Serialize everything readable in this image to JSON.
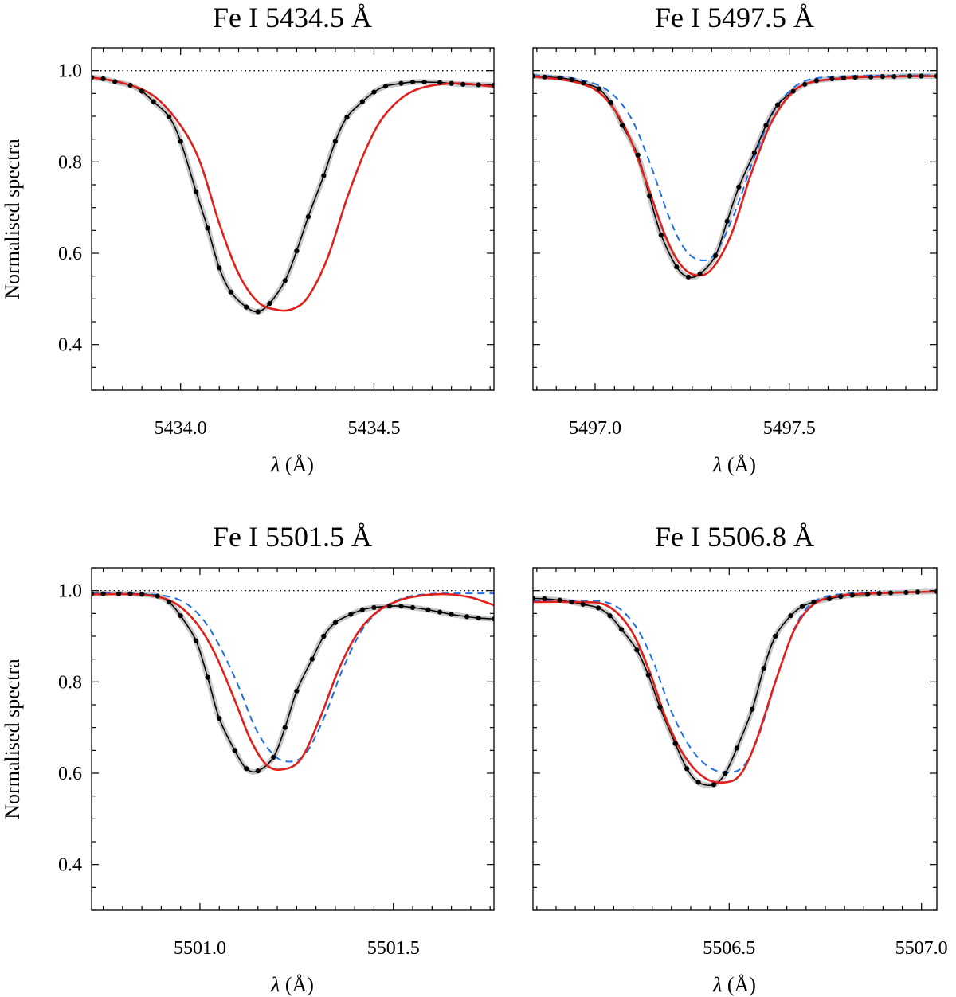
{
  "figure": {
    "ylabel": "Normalised spectra",
    "xlabel_symbol": "λ",
    "xlabel_unit": " (Å)"
  },
  "colors": {
    "observed": "#000000",
    "band": "#c8c8c8",
    "model_red": "#e0201b",
    "model_blue": "#1f6fe5"
  },
  "chart_data": [
    {
      "type": "line",
      "title": "Fe I  5434.5 Å",
      "xlabel": "λ (Å)",
      "ylabel": "Normalised spectra",
      "xlim": [
        5433.77,
        5434.81
      ],
      "ylim": [
        0.3,
        1.05
      ],
      "xticks": [
        5434.0,
        5434.5
      ],
      "xtick_labels": [
        "5434.0",
        "5434.5"
      ],
      "yticks": [
        0.4,
        0.6,
        0.8,
        1.0
      ],
      "ytick_labels": [
        "0.4",
        "0.6",
        "0.8",
        "1.0"
      ],
      "continuum": 1.0,
      "series": [
        {
          "name": "observed",
          "style": "black-dots",
          "x": [
            5433.77,
            5433.8,
            5433.83,
            5433.87,
            5433.9,
            5433.93,
            5433.97,
            5434.0,
            5434.04,
            5434.07,
            5434.1,
            5434.13,
            5434.17,
            5434.2,
            5434.23,
            5434.27,
            5434.3,
            5434.33,
            5434.37,
            5434.4,
            5434.43,
            5434.47,
            5434.5,
            5434.53,
            5434.57,
            5434.6,
            5434.63,
            5434.67,
            5434.7,
            5434.73,
            5434.77,
            5434.81
          ],
          "y": [
            0.985,
            0.982,
            0.976,
            0.968,
            0.955,
            0.932,
            0.899,
            0.845,
            0.735,
            0.655,
            0.568,
            0.515,
            0.482,
            0.472,
            0.49,
            0.54,
            0.605,
            0.68,
            0.77,
            0.845,
            0.898,
            0.932,
            0.953,
            0.966,
            0.972,
            0.975,
            0.975,
            0.974,
            0.972,
            0.97,
            0.969,
            0.968
          ]
        },
        {
          "name": "model (red)",
          "style": "red-solid",
          "x": [
            5433.77,
            5433.85,
            5433.93,
            5434.0,
            5434.05,
            5434.1,
            5434.15,
            5434.2,
            5434.25,
            5434.29,
            5434.33,
            5434.38,
            5434.43,
            5434.48,
            5434.53,
            5434.6,
            5434.7,
            5434.81
          ],
          "y": [
            0.985,
            0.973,
            0.945,
            0.88,
            0.8,
            0.665,
            0.555,
            0.493,
            0.476,
            0.478,
            0.505,
            0.59,
            0.72,
            0.83,
            0.905,
            0.955,
            0.972,
            0.965
          ]
        }
      ]
    },
    {
      "type": "line",
      "title": "Fe I  5497.5 Å",
      "xlabel": "λ (Å)",
      "ylabel": "Normalised spectra",
      "xlim": [
        5496.84,
        5497.88
      ],
      "ylim": [
        0.3,
        1.05
      ],
      "xticks": [
        5497.0,
        5497.5
      ],
      "xtick_labels": [
        "5497.0",
        "5497.5"
      ],
      "yticks": [
        0.4,
        0.6,
        0.8,
        1.0
      ],
      "ytick_labels": [
        "0.4",
        "0.6",
        "0.8",
        "1.0"
      ],
      "continuum": 1.0,
      "series": [
        {
          "name": "observed",
          "style": "black-dots",
          "x": [
            5496.84,
            5496.87,
            5496.91,
            5496.94,
            5496.97,
            5497.01,
            5497.04,
            5497.07,
            5497.11,
            5497.14,
            5497.17,
            5497.21,
            5497.24,
            5497.27,
            5497.31,
            5497.34,
            5497.37,
            5497.41,
            5497.44,
            5497.47,
            5497.51,
            5497.54,
            5497.57,
            5497.61,
            5497.64,
            5497.67,
            5497.71,
            5497.74,
            5497.77,
            5497.81,
            5497.84,
            5497.88
          ],
          "y": [
            0.988,
            0.986,
            0.984,
            0.98,
            0.973,
            0.96,
            0.93,
            0.88,
            0.815,
            0.725,
            0.64,
            0.57,
            0.548,
            0.555,
            0.595,
            0.67,
            0.745,
            0.82,
            0.88,
            0.925,
            0.955,
            0.97,
            0.978,
            0.982,
            0.984,
            0.985,
            0.986,
            0.987,
            0.987,
            0.988,
            0.988,
            0.988
          ]
        },
        {
          "name": "model (red)",
          "style": "red-solid",
          "x": [
            5496.84,
            5496.95,
            5497.02,
            5497.08,
            5497.13,
            5497.18,
            5497.22,
            5497.26,
            5497.3,
            5497.35,
            5497.4,
            5497.45,
            5497.5,
            5497.55,
            5497.65,
            5497.75,
            5497.88
          ],
          "y": [
            0.987,
            0.975,
            0.945,
            0.87,
            0.76,
            0.64,
            0.575,
            0.552,
            0.565,
            0.64,
            0.77,
            0.88,
            0.945,
            0.973,
            0.984,
            0.987,
            0.988
          ]
        },
        {
          "name": "model (blue dashed)",
          "style": "blue-dashed",
          "x": [
            5496.84,
            5496.95,
            5497.03,
            5497.09,
            5497.14,
            5497.19,
            5497.23,
            5497.27,
            5497.31,
            5497.36,
            5497.41,
            5497.46,
            5497.51,
            5497.56,
            5497.65,
            5497.75,
            5497.88
          ],
          "y": [
            0.99,
            0.982,
            0.958,
            0.9,
            0.8,
            0.68,
            0.61,
            0.585,
            0.6,
            0.69,
            0.81,
            0.91,
            0.962,
            0.982,
            0.988,
            0.989,
            0.99
          ]
        }
      ]
    },
    {
      "type": "line",
      "title": "Fe I  5501.5 Å",
      "xlabel": "λ (Å)",
      "ylabel": "Normalised spectra",
      "xlim": [
        5500.72,
        5501.76
      ],
      "ylim": [
        0.3,
        1.05
      ],
      "xticks": [
        5501.0,
        5501.5
      ],
      "xtick_labels": [
        "5501.0",
        "5501.5"
      ],
      "yticks": [
        0.4,
        0.6,
        0.8,
        1.0
      ],
      "ytick_labels": [
        "0.4",
        "0.6",
        "0.8",
        "1.0"
      ],
      "continuum": 1.0,
      "series": [
        {
          "name": "observed",
          "style": "black-dots",
          "x": [
            5500.72,
            5500.75,
            5500.79,
            5500.82,
            5500.85,
            5500.89,
            5500.92,
            5500.95,
            5500.99,
            5501.02,
            5501.05,
            5501.09,
            5501.12,
            5501.15,
            5501.19,
            5501.22,
            5501.25,
            5501.29,
            5501.32,
            5501.35,
            5501.39,
            5501.42,
            5501.45,
            5501.49,
            5501.52,
            5501.55,
            5501.59,
            5501.62,
            5501.65,
            5501.69,
            5501.72,
            5501.76
          ],
          "y": [
            0.993,
            0.993,
            0.993,
            0.993,
            0.992,
            0.988,
            0.975,
            0.945,
            0.89,
            0.81,
            0.72,
            0.65,
            0.61,
            0.605,
            0.635,
            0.7,
            0.78,
            0.85,
            0.9,
            0.93,
            0.948,
            0.958,
            0.963,
            0.966,
            0.966,
            0.963,
            0.958,
            0.953,
            0.948,
            0.943,
            0.94,
            0.938
          ]
        },
        {
          "name": "model (red)",
          "style": "red-solid",
          "x": [
            5500.72,
            5500.85,
            5500.93,
            5500.99,
            5501.04,
            5501.09,
            5501.13,
            5501.17,
            5501.21,
            5501.26,
            5501.31,
            5501.36,
            5501.41,
            5501.46,
            5501.52,
            5501.58,
            5501.64,
            5501.7,
            5501.76
          ],
          "y": [
            0.992,
            0.991,
            0.975,
            0.93,
            0.86,
            0.76,
            0.675,
            0.62,
            0.608,
            0.63,
            0.72,
            0.83,
            0.91,
            0.955,
            0.98,
            0.99,
            0.992,
            0.985,
            0.968
          ]
        },
        {
          "name": "model (blue dashed)",
          "style": "blue-dashed",
          "x": [
            5500.72,
            5500.85,
            5500.94,
            5501.0,
            5501.05,
            5501.1,
            5501.14,
            5501.18,
            5501.22,
            5501.27,
            5501.32,
            5501.37,
            5501.42,
            5501.47,
            5501.53,
            5501.6,
            5501.68,
            5501.76
          ],
          "y": [
            0.994,
            0.993,
            0.982,
            0.945,
            0.88,
            0.79,
            0.705,
            0.65,
            0.626,
            0.64,
            0.72,
            0.83,
            0.915,
            0.96,
            0.985,
            0.993,
            0.994,
            0.994
          ]
        }
      ]
    },
    {
      "type": "line",
      "title": "Fe I  5506.8 Å",
      "xlabel": "λ (Å)",
      "ylabel": "Normalised spectra",
      "xlim": [
        5505.99,
        5507.04
      ],
      "ylim": [
        0.3,
        1.05
      ],
      "xticks": [
        5506.5,
        5507.0
      ],
      "xtick_labels": [
        "5506.5",
        "5507.0"
      ],
      "yticks": [
        0.4,
        0.6,
        0.8,
        1.0
      ],
      "ytick_labels": [
        "0.4",
        "0.6",
        "0.8",
        "1.0"
      ],
      "continuum": 1.0,
      "series": [
        {
          "name": "observed",
          "style": "black-dots",
          "x": [
            5505.99,
            5506.02,
            5506.06,
            5506.09,
            5506.12,
            5506.16,
            5506.19,
            5506.22,
            5506.26,
            5506.29,
            5506.32,
            5506.36,
            5506.39,
            5506.42,
            5506.46,
            5506.49,
            5506.52,
            5506.56,
            5506.59,
            5506.62,
            5506.66,
            5506.69,
            5506.72,
            5506.76,
            5506.79,
            5506.82,
            5506.86,
            5506.89,
            5506.92,
            5506.96,
            5506.99,
            5507.04
          ],
          "y": [
            0.983,
            0.982,
            0.979,
            0.975,
            0.97,
            0.962,
            0.945,
            0.915,
            0.87,
            0.815,
            0.745,
            0.665,
            0.61,
            0.58,
            0.575,
            0.6,
            0.655,
            0.74,
            0.83,
            0.9,
            0.945,
            0.965,
            0.975,
            0.982,
            0.987,
            0.99,
            0.992,
            0.994,
            0.995,
            0.996,
            0.997,
            0.998
          ]
        },
        {
          "name": "model (red)",
          "style": "red-solid",
          "x": [
            5505.99,
            5506.1,
            5506.18,
            5506.24,
            5506.29,
            5506.34,
            5506.39,
            5506.44,
            5506.49,
            5506.53,
            5506.57,
            5506.62,
            5506.67,
            5506.72,
            5506.78,
            5506.85,
            5506.95,
            5507.04
          ],
          "y": [
            0.975,
            0.975,
            0.968,
            0.92,
            0.83,
            0.71,
            0.63,
            0.588,
            0.58,
            0.598,
            0.67,
            0.8,
            0.915,
            0.97,
            0.988,
            0.993,
            0.996,
            0.998
          ]
        },
        {
          "name": "model (blue dashed)",
          "style": "blue-dashed",
          "x": [
            5505.99,
            5506.1,
            5506.19,
            5506.25,
            5506.3,
            5506.35,
            5506.4,
            5506.45,
            5506.5,
            5506.54,
            5506.58,
            5506.63,
            5506.68,
            5506.73,
            5506.8,
            5506.9,
            5507.04
          ],
          "y": [
            0.978,
            0.978,
            0.972,
            0.93,
            0.85,
            0.735,
            0.655,
            0.612,
            0.602,
            0.618,
            0.69,
            0.825,
            0.935,
            0.98,
            0.993,
            0.996,
            0.998
          ]
        }
      ]
    }
  ]
}
